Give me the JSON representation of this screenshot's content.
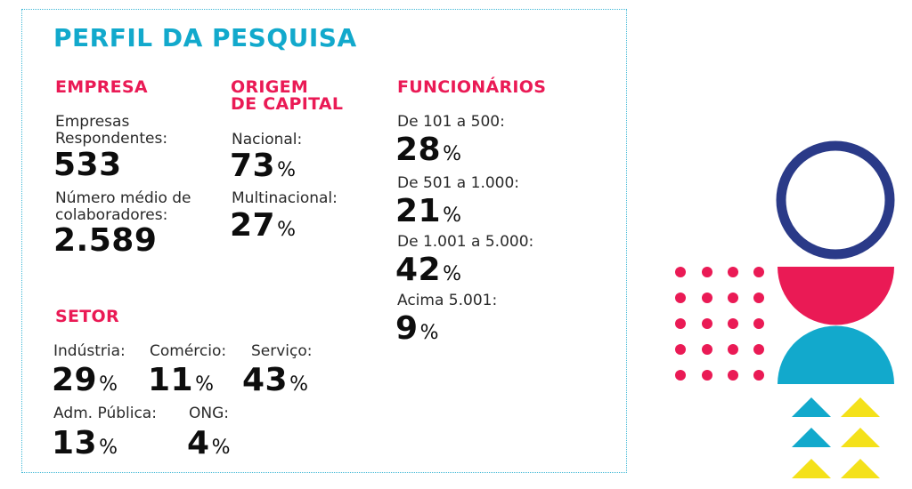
{
  "title": "PERFIL DA PESQUISA",
  "empresa": {
    "heading": "EMPRESA",
    "respondentes_label_1": "Empresas",
    "respondentes_label_2": "Respondentes:",
    "respondentes_value": "533",
    "colaboradores_label_1": "Número médio de",
    "colaboradores_label_2": "colaboradores:",
    "colaboradores_value": "2.589"
  },
  "origem": {
    "heading_1": "ORIGEM",
    "heading_2": "DE CAPITAL",
    "nacional_label": "Nacional:",
    "nacional_value": "73",
    "multinacional_label": "Multinacional:",
    "multinacional_value": "27"
  },
  "funcionarios": {
    "heading": "FUNCIONÁRIOS",
    "items": [
      {
        "label": "De 101 a 500:",
        "value": "28"
      },
      {
        "label": "De 501 a 1.000:",
        "value": "21"
      },
      {
        "label": "De 1.001 a 5.000:",
        "value": "42"
      },
      {
        "label": "Acima 5.001:",
        "value": "9"
      }
    ]
  },
  "setor": {
    "heading": "SETOR",
    "items": [
      {
        "label": "Indústria:",
        "value": "29"
      },
      {
        "label": "Comércio:",
        "value": "11"
      },
      {
        "label": "Serviço:",
        "value": "43"
      },
      {
        "label": "Adm. Pública:",
        "value": "13"
      },
      {
        "label": "ONG:",
        "value": "4"
      }
    ]
  },
  "percent_sign": "%",
  "colors": {
    "cyan": "#12a9cc",
    "magenta": "#ea1a55",
    "navy": "#2a3a88",
    "yellow": "#f4e11a"
  }
}
